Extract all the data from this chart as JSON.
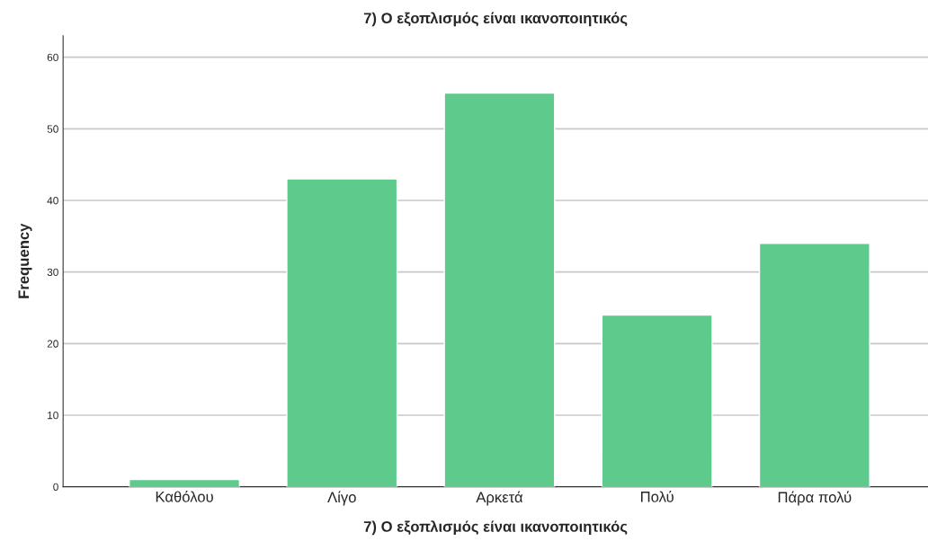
{
  "chart_data": {
    "type": "bar",
    "title": "7) Ο εξοπλισμός είναι ικανοποιητικός",
    "xlabel": "7) Ο εξοπλισμός είναι ικανοποιητικός",
    "ylabel": "Frequency",
    "categories": [
      "Καθόλου",
      "Λίγο",
      "Αρκετά",
      "Πολύ",
      "Πάρα πολύ"
    ],
    "values": [
      1,
      43,
      55,
      24,
      34
    ],
    "color": "#5ecb8c",
    "ylim": [
      0,
      63
    ],
    "yticks": [
      0,
      10,
      20,
      30,
      40,
      50,
      60
    ],
    "grid": "y",
    "legend": false
  }
}
